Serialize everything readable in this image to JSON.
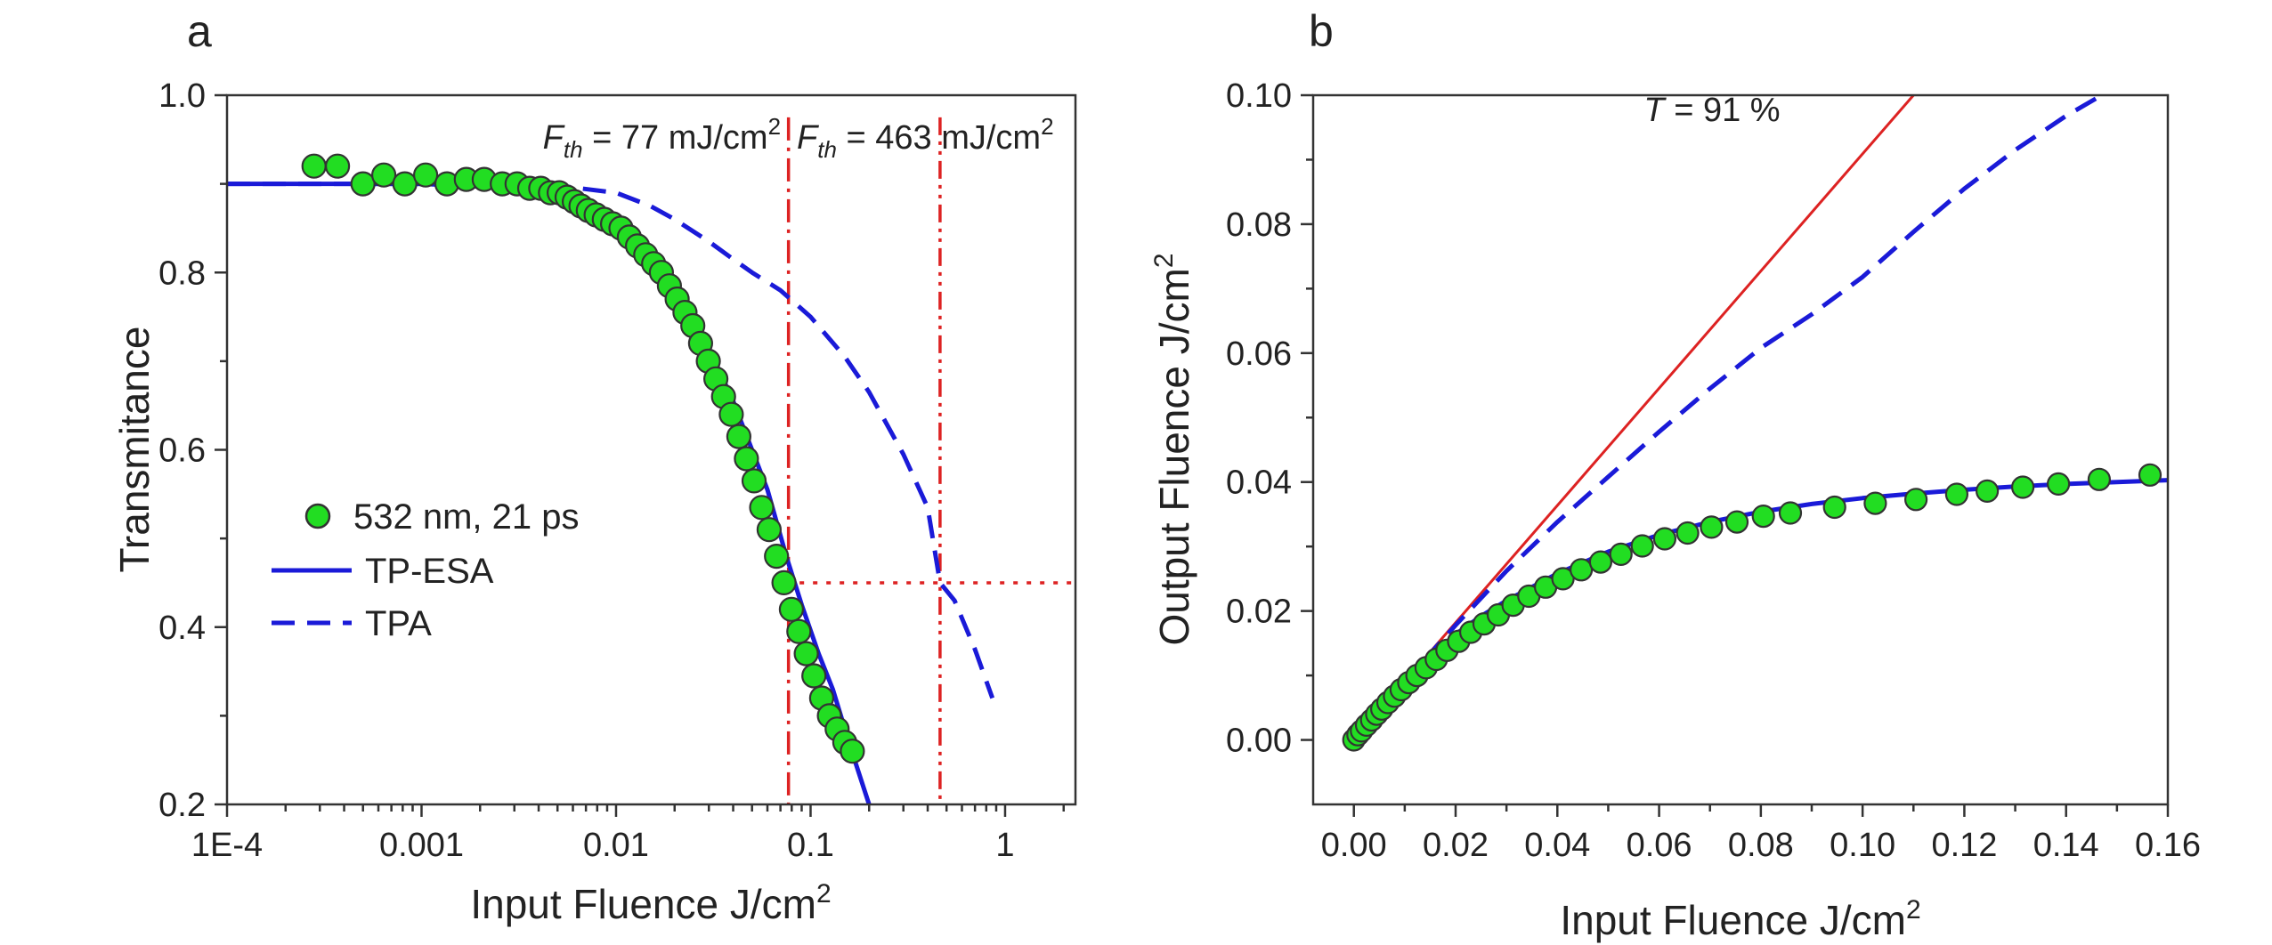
{
  "colors": {
    "marker_fill": "#22dd22",
    "marker_edge": "#333333",
    "fit_line": "#1a1ad8",
    "tpa_line": "#1a1ad8",
    "threshold_line": "#dd2222",
    "linear_line": "#dd2222"
  },
  "chart_data": [
    {
      "panel": "a",
      "type": "scatter",
      "xlabel": "Input Fluence  J/cm",
      "xlabel_sup": "2",
      "ylabel": "Transmitance",
      "xscale": "log",
      "xlim": [
        0.0001,
        2.3
      ],
      "ylim": [
        0.2,
        1.0
      ],
      "xticks": [
        0.0001,
        0.001,
        0.01,
        0.1,
        1
      ],
      "xtick_labels": [
        "1E-4",
        "0.001",
        "0.01",
        "0.1",
        "1"
      ],
      "yticks": [
        0.2,
        0.4,
        0.6,
        0.8,
        1.0
      ],
      "ytick_labels": [
        "0.2",
        "0.4",
        "0.6",
        "0.8",
        "1.0"
      ],
      "legend_position": "lower-left",
      "series": [
        {
          "name": "532 nm, 21 ps",
          "kind": "markers",
          "x": [
            0.00028,
            0.00037,
            0.0005,
            0.00064,
            0.00082,
            0.00105,
            0.00135,
            0.0017,
            0.0021,
            0.0026,
            0.0031,
            0.0036,
            0.0041,
            0.0046,
            0.0051,
            0.0056,
            0.0061,
            0.0066,
            0.0072,
            0.0079,
            0.0087,
            0.0096,
            0.0106,
            0.0117,
            0.0129,
            0.0142,
            0.0156,
            0.0171,
            0.0188,
            0.0206,
            0.0226,
            0.0248,
            0.0272,
            0.0298,
            0.0326,
            0.0357,
            0.0391,
            0.0428,
            0.0468,
            0.0512,
            0.056,
            0.0612,
            0.0668,
            0.073,
            0.0797,
            0.087,
            0.095,
            0.104,
            0.114,
            0.125,
            0.137,
            0.15,
            0.164
          ],
          "y": [
            0.92,
            0.92,
            0.9,
            0.91,
            0.9,
            0.91,
            0.9,
            0.905,
            0.905,
            0.9,
            0.9,
            0.895,
            0.895,
            0.89,
            0.89,
            0.885,
            0.88,
            0.875,
            0.87,
            0.865,
            0.86,
            0.855,
            0.85,
            0.84,
            0.83,
            0.82,
            0.81,
            0.8,
            0.785,
            0.77,
            0.755,
            0.74,
            0.72,
            0.7,
            0.68,
            0.66,
            0.64,
            0.615,
            0.59,
            0.565,
            0.535,
            0.51,
            0.48,
            0.45,
            0.42,
            0.395,
            0.37,
            0.345,
            0.32,
            0.3,
            0.285,
            0.27,
            0.26
          ]
        },
        {
          "name": "TP-ESA",
          "kind": "line",
          "x": [
            0.0001,
            0.001,
            0.003,
            0.006,
            0.01,
            0.015,
            0.02,
            0.03,
            0.04,
            0.05,
            0.06,
            0.075,
            0.09,
            0.11,
            0.13,
            0.16,
            0.2
          ],
          "y": [
            0.9,
            0.9,
            0.895,
            0.885,
            0.86,
            0.82,
            0.785,
            0.715,
            0.655,
            0.6,
            0.555,
            0.48,
            0.425,
            0.37,
            0.33,
            0.265,
            0.2
          ]
        },
        {
          "name": "TPA",
          "kind": "dashed",
          "x": [
            0.0001,
            0.002,
            0.005,
            0.01,
            0.015,
            0.02,
            0.03,
            0.04,
            0.05,
            0.07,
            0.1,
            0.15,
            0.2,
            0.3,
            0.4,
            0.463,
            0.55,
            0.7,
            0.86
          ],
          "y": [
            0.9,
            0.9,
            0.898,
            0.89,
            0.875,
            0.86,
            0.835,
            0.815,
            0.8,
            0.78,
            0.75,
            0.705,
            0.665,
            0.595,
            0.535,
            0.45,
            0.43,
            0.375,
            0.32
          ]
        }
      ],
      "reference_lines": [
        {
          "orientation": "vertical",
          "x": 0.077,
          "style": "dash-dot",
          "y_from": 0.2,
          "y_to": 0.975
        },
        {
          "orientation": "vertical",
          "x": 0.463,
          "style": "dash-dot-dot",
          "y_from": 0.2,
          "y_to": 0.975
        },
        {
          "orientation": "horizontal",
          "y": 0.45,
          "style": "dotted",
          "x_from": 0.075,
          "x_to": 2.3
        }
      ],
      "annotations": [
        {
          "prefix": "F",
          "sub": "th",
          "text": " = 77 mJ/cm",
          "sup": "2",
          "x": 0.0042,
          "y": 0.94
        },
        {
          "prefix": "F",
          "sub": "th",
          "text": " = 463 mJ/cm",
          "sup": "2",
          "x": 0.085,
          "y": 0.94
        }
      ]
    },
    {
      "panel": "b",
      "type": "scatter",
      "xlabel": "Input Fluence  J/cm",
      "xlabel_sup": "2",
      "ylabel": "Output Fluence  J/cm",
      "ylabel_sup": "2",
      "xlim": [
        -0.008,
        0.16
      ],
      "ylim": [
        -0.01,
        0.1
      ],
      "xticks": [
        0.0,
        0.02,
        0.04,
        0.06,
        0.08,
        0.1,
        0.12,
        0.14,
        0.16
      ],
      "xtick_labels": [
        "0.00",
        "0.02",
        "0.04",
        "0.06",
        "0.08",
        "0.10",
        "0.12",
        "0.14",
        "0.16"
      ],
      "yticks": [
        0.0,
        0.02,
        0.04,
        0.06,
        0.08,
        0.1
      ],
      "ytick_labels": [
        "0.00",
        "0.02",
        "0.04",
        "0.06",
        "0.08",
        "0.10"
      ],
      "series": [
        {
          "kind": "markers",
          "x": [
            0.0,
            0.0008,
            0.0015,
            0.0025,
            0.0035,
            0.0045,
            0.0055,
            0.0067,
            0.008,
            0.0093,
            0.0108,
            0.0124,
            0.0142,
            0.0162,
            0.0183,
            0.0206,
            0.023,
            0.0256,
            0.0284,
            0.0313,
            0.0344,
            0.0377,
            0.0411,
            0.0447,
            0.0485,
            0.0525,
            0.0567,
            0.0611,
            0.0656,
            0.0703,
            0.0753,
            0.0805,
            0.0858,
            0.0945,
            0.1025,
            0.1105,
            0.1185,
            0.1245,
            0.1315,
            0.1385,
            0.1465,
            0.1565
          ],
          "y": [
            0.0,
            0.0008,
            0.0014,
            0.0023,
            0.0031,
            0.004,
            0.0048,
            0.0058,
            0.0068,
            0.0078,
            0.0089,
            0.01,
            0.0112,
            0.0125,
            0.0139,
            0.0153,
            0.0167,
            0.018,
            0.0194,
            0.0209,
            0.0223,
            0.0237,
            0.025,
            0.0264,
            0.0276,
            0.0288,
            0.0301,
            0.0312,
            0.0321,
            0.033,
            0.0338,
            0.0347,
            0.0352,
            0.0361,
            0.0367,
            0.0373,
            0.0381,
            0.0386,
            0.0392,
            0.0397,
            0.0404,
            0.0411
          ]
        },
        {
          "kind": "line",
          "x": [
            0.0,
            0.005,
            0.01,
            0.015,
            0.02,
            0.025,
            0.03,
            0.04,
            0.05,
            0.06,
            0.07,
            0.08,
            0.09,
            0.1,
            0.11,
            0.12,
            0.13,
            0.14,
            0.15,
            0.16
          ],
          "y": [
            0.0,
            0.0045,
            0.0088,
            0.0128,
            0.0164,
            0.0192,
            0.0216,
            0.0258,
            0.0292,
            0.0318,
            0.0338,
            0.0354,
            0.0366,
            0.0375,
            0.0382,
            0.0388,
            0.0393,
            0.0397,
            0.04,
            0.0403
          ]
        },
        {
          "kind": "dashed",
          "x": [
            0.0,
            0.01,
            0.02,
            0.03,
            0.04,
            0.05,
            0.06,
            0.07,
            0.08,
            0.09,
            0.1,
            0.11,
            0.12,
            0.13,
            0.14,
            0.147
          ],
          "y": [
            0.0,
            0.009,
            0.0178,
            0.0262,
            0.0338,
            0.0408,
            0.0478,
            0.0545,
            0.0608,
            0.066,
            0.0718,
            0.0788,
            0.0855,
            0.0915,
            0.0968,
            0.1
          ]
        },
        {
          "kind": "linear",
          "x": [
            0.0,
            0.11
          ],
          "y": [
            0.0,
            0.1
          ]
        }
      ],
      "annotations": [
        {
          "prefix": "T",
          "text": " = 91 %",
          "x": 0.057,
          "y": 0.096
        }
      ]
    }
  ]
}
